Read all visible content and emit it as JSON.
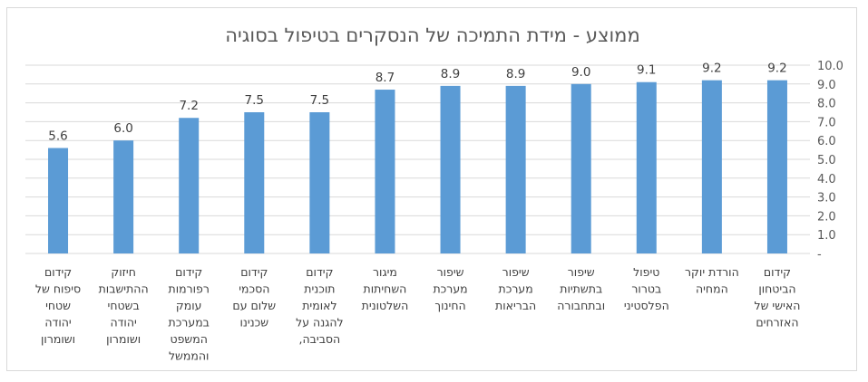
{
  "chart_data": {
    "type": "bar",
    "title": "ממוצע - מידת התמיכה של הנסקרים בטיפול בסוגיה",
    "xlabel": "",
    "ylabel": "",
    "ylim": [
      0,
      10
    ],
    "y_ticks": [
      "-",
      "1.0",
      "2.0",
      "3.0",
      "4.0",
      "5.0",
      "6.0",
      "7.0",
      "8.0",
      "9.0",
      "10.0"
    ],
    "y_axis_side": "right",
    "grid": true,
    "bar_color": "#5b9bd5",
    "categories": [
      [
        "קידום",
        "הביטחון",
        "האישי של",
        "האזרחים"
      ],
      [
        "הורדת יוקר",
        "המחיה"
      ],
      [
        "טיפול",
        "בטרור",
        "הפלסטיני"
      ],
      [
        "שיפור",
        "בתשתיות",
        "ובתחבורה"
      ],
      [
        "שיפור",
        "מערכת",
        "הבריאות"
      ],
      [
        "שיפור",
        "מערכת",
        "החינוך"
      ],
      [
        "מיגור",
        "השחיתות",
        "השלטונית"
      ],
      [
        "קידום",
        "תוכנית",
        "לאומית",
        "להגנה על",
        "הסביבה,"
      ],
      [
        "קידום",
        "הסכמי",
        "שלום עם",
        "שכנינו"
      ],
      [
        "קידום",
        "רפורמות",
        "עומק",
        "במערכת",
        "המשפט",
        "והממשל"
      ],
      [
        "חיזוק",
        "ההתישבות",
        "בשטחי",
        "יהודה",
        "ושומרון"
      ],
      [
        "קידום",
        "סיפוח של",
        "שטחי",
        "יהודה",
        "ושומרון"
      ]
    ],
    "values": [
      9.2,
      9.2,
      9.1,
      9.0,
      8.9,
      8.9,
      8.7,
      7.5,
      7.5,
      7.2,
      6.0,
      5.6
    ],
    "data_labels": [
      "9.2",
      "9.2",
      "9.1",
      "9.0",
      "8.9",
      "8.9",
      "8.7",
      "7.5",
      "7.5",
      "7.2",
      "6.0",
      "5.6"
    ]
  }
}
